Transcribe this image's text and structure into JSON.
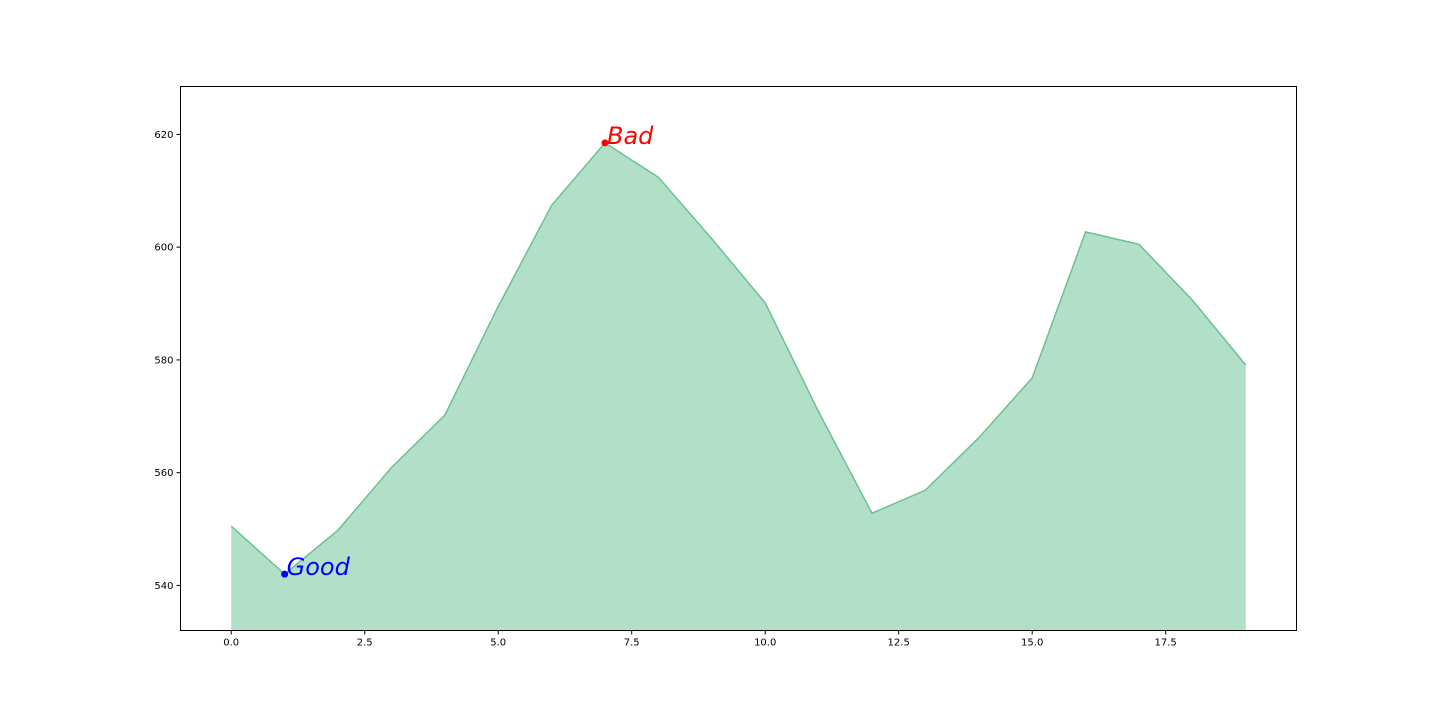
{
  "chart_data": {
    "type": "area",
    "title": "",
    "xlabel": "",
    "ylabel": "",
    "xlim": [
      -0.95,
      19.95
    ],
    "ylim": [
      532,
      628.5
    ],
    "grid": false,
    "x": [
      0,
      1,
      2,
      3,
      4,
      5,
      6,
      7,
      8,
      9,
      10,
      11,
      12,
      13,
      14,
      15,
      16,
      17,
      18,
      19
    ],
    "series": [
      {
        "values": [
          550.5,
          542,
          549.8,
          560.9,
          570.2,
          589.5,
          607.4,
          618.5,
          612.4,
          601.5,
          590.1,
          570.8,
          552.8,
          556.9,
          566.2,
          576.8,
          602.7,
          600.5,
          590.6,
          579.1
        ],
        "fill_color": "#b2dfc7",
        "line_color": "#6cc192"
      }
    ],
    "x_ticks": [
      {
        "value": 0,
        "label": "0.0"
      },
      {
        "value": 2.5,
        "label": "2.5"
      },
      {
        "value": 5,
        "label": "5.0"
      },
      {
        "value": 7.5,
        "label": "7.5"
      },
      {
        "value": 10,
        "label": "10.0"
      },
      {
        "value": 12.5,
        "label": "12.5"
      },
      {
        "value": 15,
        "label": "15.0"
      },
      {
        "value": 17.5,
        "label": "17.5"
      }
    ],
    "y_ticks": [
      {
        "value": 540,
        "label": "540"
      },
      {
        "value": 560,
        "label": "560"
      },
      {
        "value": 580,
        "label": "580"
      },
      {
        "value": 600,
        "label": "600"
      },
      {
        "value": 620,
        "label": "620"
      }
    ],
    "annotations": [
      {
        "name": "good",
        "text": "Good",
        "x": 1,
        "y": 542,
        "color": "#0000ff"
      },
      {
        "name": "bad",
        "text": "Bad",
        "x": 7,
        "y": 618.5,
        "color": "#ff0000"
      }
    ]
  }
}
